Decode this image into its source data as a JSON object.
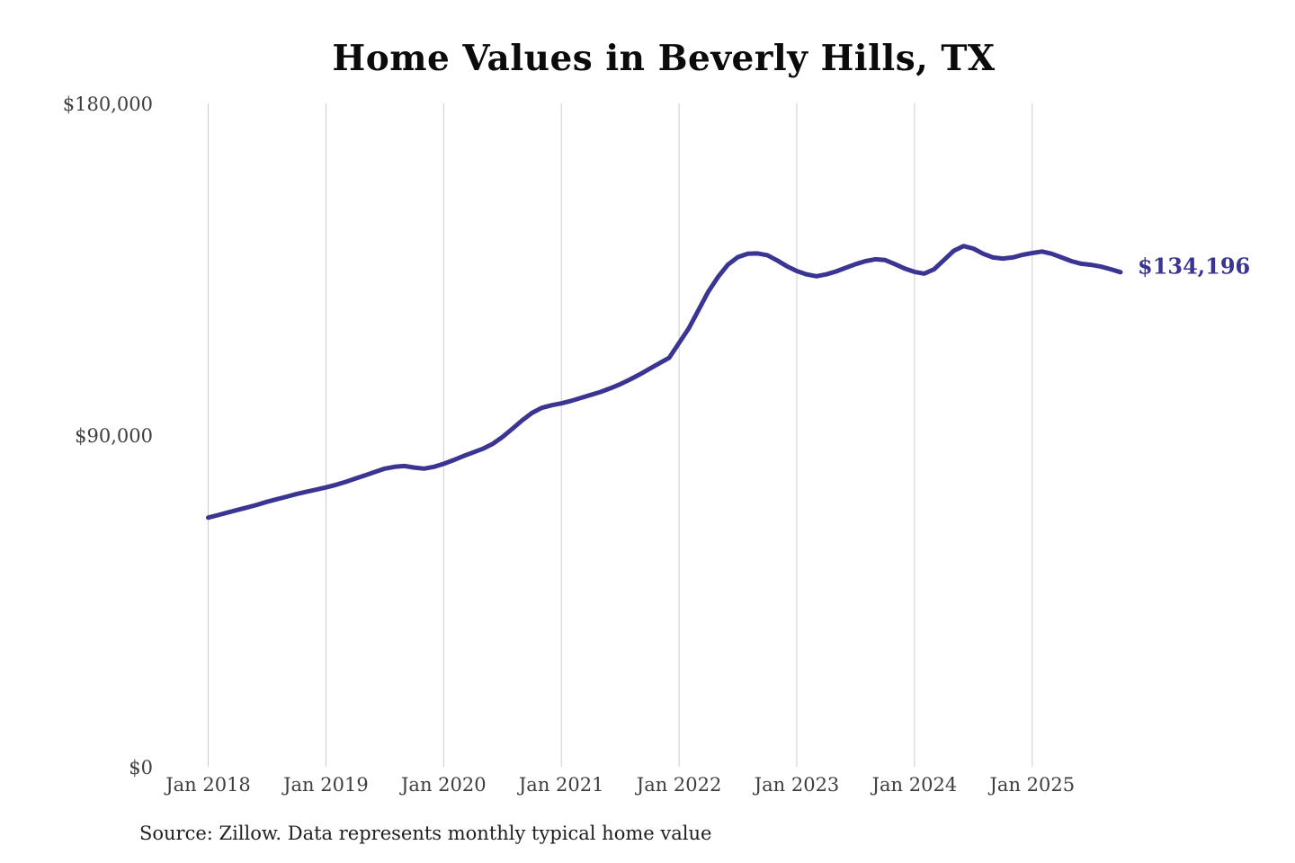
{
  "colors": {
    "line": "#3a3492",
    "grid": "#cccccc",
    "axis_text": "#3e3e3e",
    "title_text": "#0b0b0b",
    "source_text": "#1f1f1f",
    "background": "#ffffff"
  },
  "chart_data": {
    "type": "line",
    "title": "Home Values in Beverly Hills, TX",
    "source_note": "Source: Zillow. Data represents monthly typical home value",
    "last_value_label": "$134,196",
    "last_value": 134196,
    "x_tick_labels": [
      "Jan 2018",
      "Jan 2019",
      "Jan 2020",
      "Jan 2021",
      "Jan 2022",
      "Jan 2023",
      "Jan 2024",
      "Jan 2025"
    ],
    "y_tick_labels": [
      "$0",
      "$90,000",
      "$180,000"
    ],
    "y_ticks": [
      0,
      90000,
      180000
    ],
    "ylim": [
      0,
      180000
    ],
    "grid": "vertical-yearly-only",
    "legend": "none",
    "frequency": "monthly",
    "start_month": "Jan 2018",
    "end_month": "Oct 2025",
    "series": [
      {
        "name": "Monthly typical home value (USD)",
        "values": [
          67600,
          68300,
          69000,
          69700,
          70400,
          71100,
          71900,
          72600,
          73300,
          74000,
          74600,
          75200,
          75800,
          76500,
          77300,
          78200,
          79100,
          80000,
          80900,
          81400,
          81600,
          81200,
          80900,
          81400,
          82200,
          83200,
          84300,
          85300,
          86300,
          87600,
          89500,
          91700,
          94000,
          96000,
          97400,
          98100,
          98600,
          99300,
          100100,
          100900,
          101700,
          102700,
          103800,
          105100,
          106500,
          108000,
          109500,
          111000,
          115000,
          119000,
          124000,
          129000,
          133000,
          136300,
          138300,
          139200,
          139300,
          138800,
          137400,
          135800,
          134500,
          133600,
          133100,
          133600,
          134400,
          135400,
          136400,
          137200,
          137700,
          137500,
          136400,
          135200,
          134300,
          133800,
          135000,
          137500,
          140000,
          141300,
          140600,
          139200,
          138200,
          137900,
          138200,
          138900,
          139400,
          139800,
          139200,
          138200,
          137200,
          136500,
          136200,
          135700,
          135000,
          134196
        ]
      }
    ]
  }
}
